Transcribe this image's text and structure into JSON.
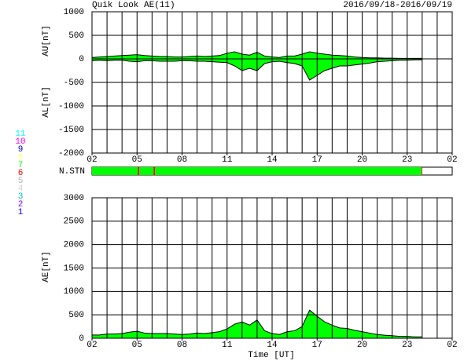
{
  "chart_data": [
    {
      "type": "area",
      "title": "Quik Look AE(11)",
      "subtitle": "2016/09/18-2016/09/19",
      "ylabels": [
        "AU[nT]",
        "AL[nT]"
      ],
      "x": [
        0,
        0.5,
        1,
        1.5,
        2,
        2.5,
        3,
        3.5,
        4,
        4.5,
        5,
        5.5,
        6,
        6.5,
        7,
        7.5,
        8,
        8.5,
        9,
        9.5,
        10,
        10.5,
        11,
        11.5,
        12,
        12.5,
        13,
        13.5,
        14,
        14.5,
        15,
        15.5,
        16,
        16.5,
        17,
        17.5,
        18,
        18.5,
        19,
        19.5,
        20,
        20.5,
        21,
        21.5,
        22
      ],
      "series": [
        {
          "color": "#00ff00",
          "values": [
            30,
            40,
            50,
            60,
            70,
            80,
            90,
            70,
            60,
            50,
            50,
            40,
            40,
            50,
            60,
            50,
            60,
            70,
            120,
            150,
            100,
            80,
            140,
            60,
            40,
            30,
            60,
            60,
            100,
            150,
            120,
            100,
            80,
            70,
            60,
            40,
            30,
            20,
            20,
            15,
            15,
            10,
            10,
            10,
            10
          ]
        },
        {
          "color": "#00ff00",
          "values": [
            -40,
            -30,
            -40,
            -30,
            -30,
            -50,
            -60,
            -40,
            -40,
            -50,
            -50,
            -50,
            -40,
            -40,
            -50,
            -50,
            -60,
            -70,
            -80,
            -150,
            -250,
            -200,
            -250,
            -100,
            -60,
            -50,
            -80,
            -100,
            -150,
            -450,
            -350,
            -250,
            -200,
            -150,
            -150,
            -130,
            -110,
            -90,
            -60,
            -50,
            -40,
            -30,
            -30,
            -20,
            -20
          ]
        }
      ],
      "xlim": [
        0,
        24
      ],
      "xticks": [
        {
          "value": 0,
          "label": "02"
        },
        {
          "value": 3,
          "label": "05"
        },
        {
          "value": 6,
          "label": "08"
        },
        {
          "value": 9,
          "label": "11"
        },
        {
          "value": 12,
          "label": "14"
        },
        {
          "value": 15,
          "label": "17"
        },
        {
          "value": 18,
          "label": "20"
        },
        {
          "value": 21,
          "label": "23"
        },
        {
          "value": 24,
          "label": "02"
        }
      ],
      "xgrid_step": 1,
      "ylim": [
        -2000,
        1000
      ],
      "yticks": [
        -2000,
        -1500,
        -1000,
        -500,
        0,
        500,
        1000
      ],
      "grid": true
    },
    {
      "type": "strip",
      "ylabel": "N.STN",
      "bins": [
        0,
        3.05,
        3.15,
        4.1,
        4.2,
        21.95,
        22
      ],
      "values": [
        7,
        6,
        7,
        6,
        7,
        6
      ],
      "xlim": [
        0,
        24
      ],
      "legend": {
        "labels": [
          1,
          2,
          3,
          4,
          5,
          6,
          7,
          8,
          9,
          10,
          11
        ],
        "colors": [
          "#0000ff",
          "#8000ff",
          "#00c0c0",
          "#d0d0d0",
          "#b0b0b0",
          "#ff0000",
          "#00ff00",
          "#ffff80",
          "#0000c0",
          "#ff00ff",
          "#00ffff"
        ]
      }
    },
    {
      "type": "area",
      "ylabel": "AE[nT]",
      "xlabel": "Time [UT]",
      "x": [
        0,
        0.5,
        1,
        1.5,
        2,
        2.5,
        3,
        3.5,
        4,
        4.5,
        5,
        5.5,
        6,
        6.5,
        7,
        7.5,
        8,
        8.5,
        9,
        9.5,
        10,
        10.5,
        11,
        11.5,
        12,
        12.5,
        13,
        13.5,
        14,
        14.5,
        15,
        15.5,
        16,
        16.5,
        17,
        17.5,
        18,
        18.5,
        19,
        19.5,
        20,
        20.5,
        21,
        21.5,
        22
      ],
      "series": [
        {
          "color": "#00ff00",
          "values": [
            70,
            70,
            90,
            90,
            100,
            130,
            150,
            110,
            100,
            100,
            100,
            90,
            80,
            90,
            110,
            100,
            120,
            140,
            200,
            300,
            350,
            280,
            390,
            160,
            100,
            80,
            140,
            160,
            250,
            600,
            470,
            350,
            280,
            220,
            210,
            170,
            140,
            110,
            80,
            65,
            55,
            40,
            40,
            30,
            30
          ]
        }
      ],
      "xlim": [
        0,
        24
      ],
      "xticks": [
        {
          "value": 0,
          "label": "02"
        },
        {
          "value": 3,
          "label": "05"
        },
        {
          "value": 6,
          "label": "08"
        },
        {
          "value": 9,
          "label": "11"
        },
        {
          "value": 12,
          "label": "14"
        },
        {
          "value": 15,
          "label": "17"
        },
        {
          "value": 18,
          "label": "20"
        },
        {
          "value": 21,
          "label": "23"
        },
        {
          "value": 24,
          "label": "02"
        }
      ],
      "xgrid_step": 1,
      "ylim": [
        0,
        3000
      ],
      "yticks": [
        0,
        500,
        1000,
        1500,
        2000,
        2500,
        3000
      ],
      "grid": true
    }
  ]
}
